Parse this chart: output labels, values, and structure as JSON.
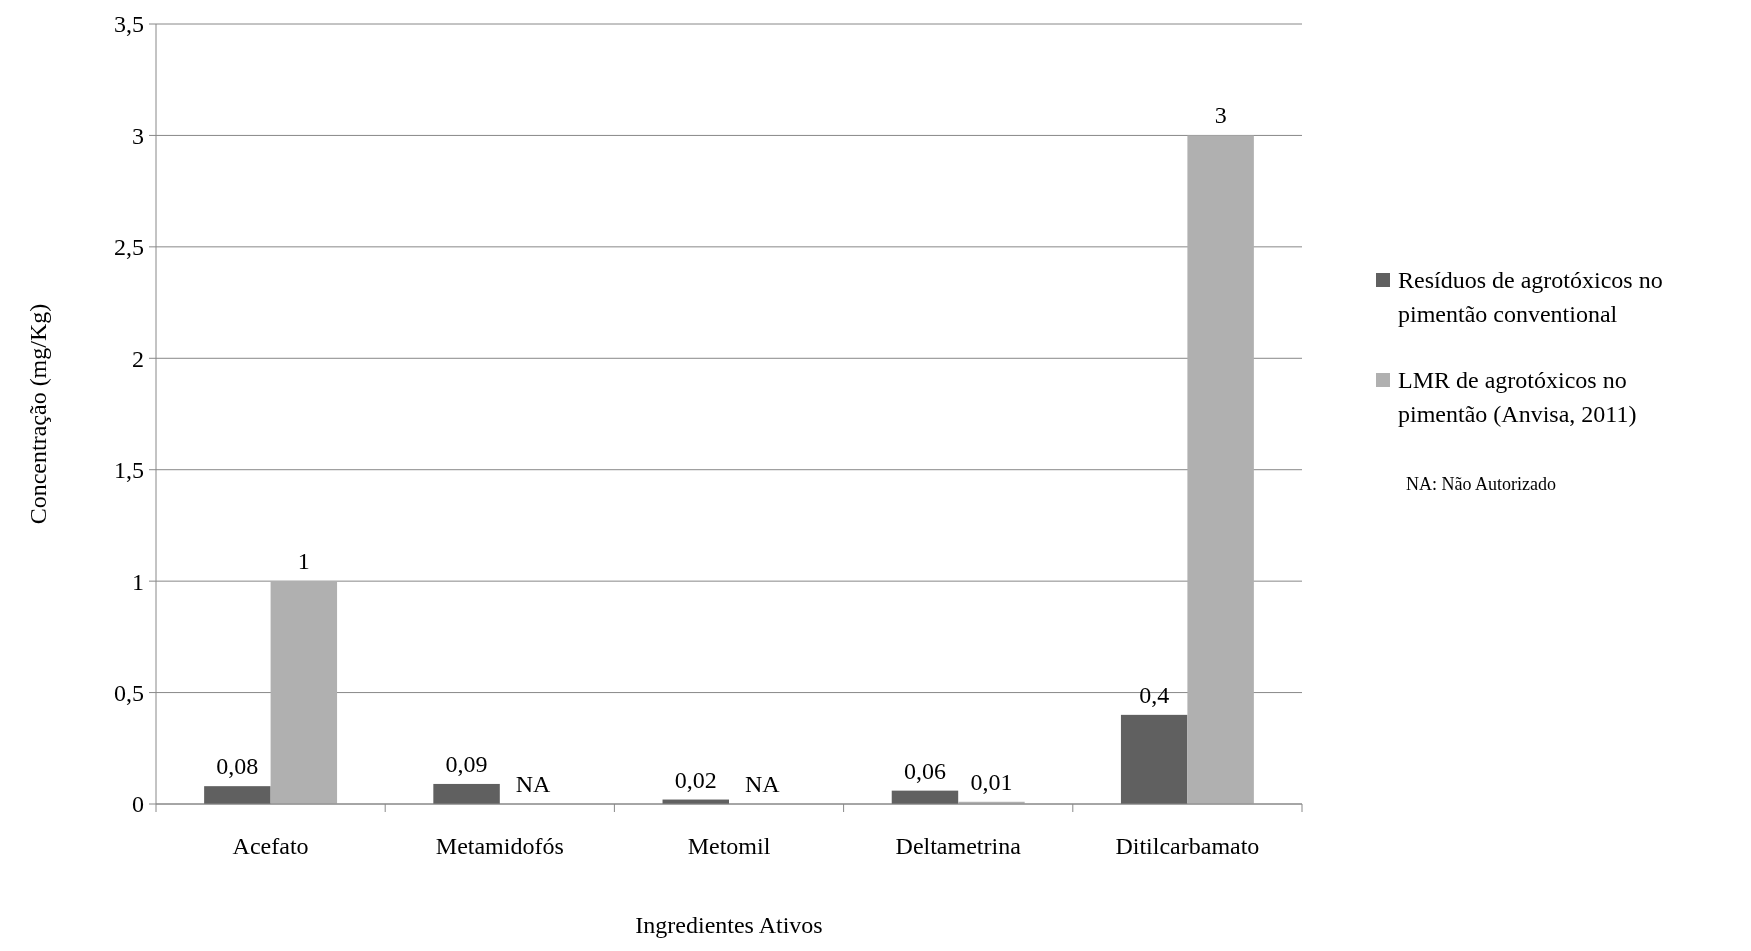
{
  "chart_data": {
    "type": "bar",
    "xlabel": "Ingredientes Ativos",
    "ylabel": "Concentração (mg/Kg)",
    "categories": [
      "Acefato",
      "Metamidofós",
      "Metomil",
      "Deltametrina",
      "Ditilcarbamato"
    ],
    "series": [
      {
        "name": "Resíduos de agrotóxicos no pimentão conventional",
        "color": "#606060",
        "values": [
          0.08,
          0.09,
          0.02,
          0.06,
          0.4
        ],
        "value_labels": [
          "0,08",
          "0,09",
          "0,02",
          "0,06",
          "0,4"
        ]
      },
      {
        "name": "LMR de agrotóxicos no pimentão (Anvisa, 2011)",
        "color": "#b0b0b0",
        "values": [
          1,
          null,
          null,
          0.01,
          3
        ],
        "value_labels": [
          "1",
          "NA",
          "NA",
          "0,01",
          "3"
        ]
      }
    ],
    "ylim": [
      0,
      3.5
    ],
    "yticks": [
      0,
      {
        "value": 0.5,
        "label": "0,5"
      },
      1,
      {
        "value": 1.5,
        "label": "1,5"
      },
      2,
      {
        "value": 2.5,
        "label": "2,5"
      },
      3,
      {
        "value": 3.5,
        "label": "3,5"
      }
    ],
    "grid": "y",
    "legend": "right",
    "annotations": [
      "NA: Não Autorizado"
    ]
  }
}
